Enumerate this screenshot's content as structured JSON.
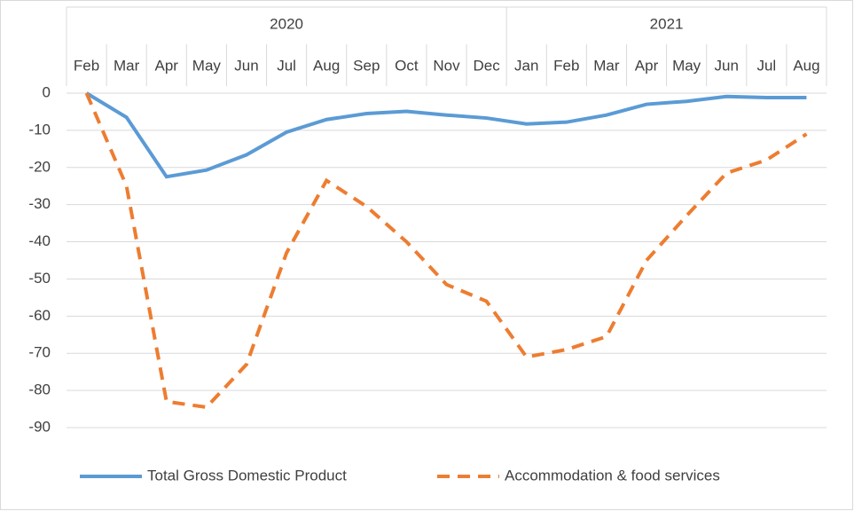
{
  "chart_data": {
    "type": "line",
    "categories": [
      "Feb",
      "Mar",
      "Apr",
      "May",
      "Jun",
      "Jul",
      "Aug",
      "Sep",
      "Oct",
      "Nov",
      "Dec",
      "Jan",
      "Feb",
      "Mar",
      "Apr",
      "May",
      "Jun",
      "Jul",
      "Aug"
    ],
    "category_groups": [
      "2020",
      null,
      null,
      null,
      null,
      null,
      null,
      null,
      null,
      null,
      null,
      "2021",
      null,
      null,
      null,
      null,
      null,
      null,
      null
    ],
    "series": [
      {
        "name": "Total Gross Domestic Product",
        "color": "#5b9bd5",
        "dash": "solid",
        "values": [
          0,
          -6.5,
          -22.5,
          -20.7,
          -16.6,
          -10.5,
          -7.1,
          -5.5,
          -4.9,
          -5.9,
          -6.7,
          -8.3,
          -7.8,
          -5.9,
          -3.0,
          -2.2,
          -0.9,
          -1.2,
          -1.2
        ]
      },
      {
        "name": "Accommodation & food services",
        "color": "#ed7d31",
        "dash": "dashed",
        "values": [
          0,
          -25,
          -83,
          -84.5,
          -73,
          -43,
          -23.5,
          -30.5,
          -40,
          -51.5,
          -56,
          -71,
          -69,
          -65.5,
          -45,
          -33,
          -21.5,
          -18,
          -11
        ]
      }
    ],
    "ylim": [
      -90,
      0
    ],
    "yticks": [
      0,
      -10,
      -20,
      -30,
      -40,
      -50,
      -60,
      -70,
      -80,
      -90
    ],
    "grid": true,
    "legend": "bottom"
  }
}
